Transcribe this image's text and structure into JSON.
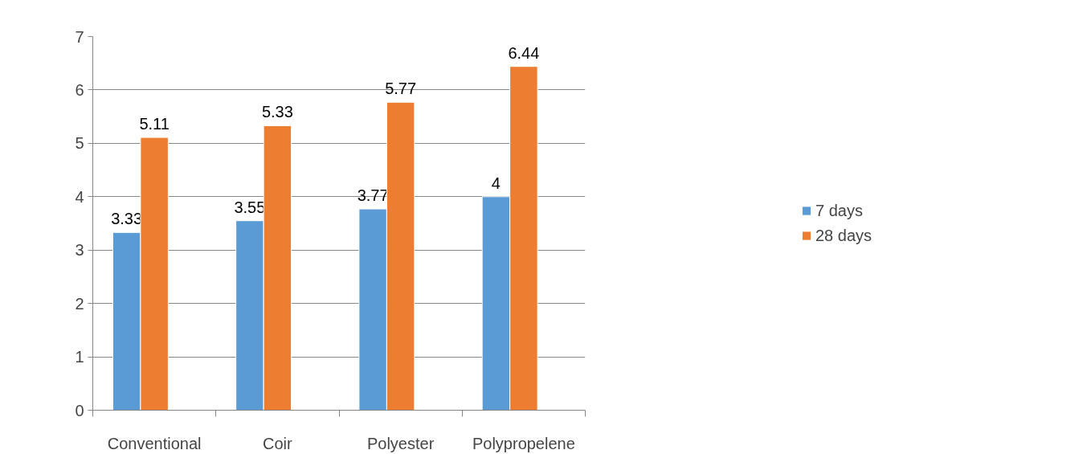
{
  "chart_data": {
    "type": "bar",
    "categories": [
      "Conventional",
      "Coir",
      "Polyester",
      "Polypropelene"
    ],
    "series": [
      {
        "name": "7 days",
        "color": "#5b9bd5",
        "values": [
          3.33,
          3.55,
          3.77,
          4
        ]
      },
      {
        "name": "28 days",
        "color": "#ed7d31",
        "values": [
          5.11,
          5.33,
          5.77,
          6.44
        ]
      }
    ],
    "ylim": [
      0,
      7
    ],
    "yticks": [
      0,
      1,
      2,
      3,
      4,
      5,
      6,
      7
    ],
    "grid": "y",
    "legend": "right",
    "data_labels": true
  }
}
